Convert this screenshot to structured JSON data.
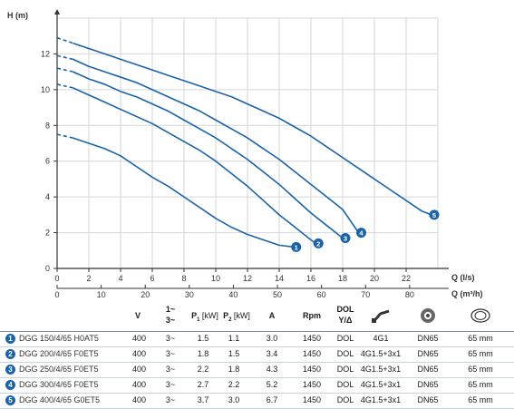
{
  "chart_data": {
    "type": "line",
    "ylabel": "H (m)",
    "xlabel": "Q (l/s)",
    "xlabel2": "Q (m³/h)",
    "xlim": [
      0,
      24
    ],
    "ylim": [
      0,
      14
    ],
    "x_ticks": [
      "0",
      "2",
      "4",
      "6",
      "8",
      "10",
      "12",
      "14",
      "16",
      "18",
      "20",
      "22"
    ],
    "x2_ticks": [
      "0",
      "10",
      "20",
      "30",
      "40",
      "50",
      "60",
      "70",
      "80"
    ],
    "y_ticks": [
      "0",
      "2",
      "4",
      "6",
      "8",
      "10",
      "12"
    ],
    "series": [
      {
        "badge": "1",
        "extrapolated": [
          [
            0,
            7.5
          ],
          [
            1,
            7.3
          ]
        ],
        "x": [
          1,
          2,
          3,
          4,
          5,
          6,
          7,
          8,
          9,
          10,
          11,
          12,
          13,
          14,
          14.9
        ],
        "y": [
          7.3,
          7.0,
          6.7,
          6.3,
          5.7,
          5.1,
          4.6,
          4.0,
          3.4,
          2.8,
          2.3,
          1.9,
          1.6,
          1.3,
          1.2
        ]
      },
      {
        "badge": "2",
        "extrapolated": [
          [
            0,
            10.3
          ],
          [
            1,
            10.1
          ]
        ],
        "x": [
          1,
          2,
          3,
          4,
          5,
          6,
          7,
          8,
          9,
          10,
          11,
          12,
          13,
          14,
          15,
          16,
          16.3
        ],
        "y": [
          10.1,
          9.7,
          9.3,
          8.9,
          8.5,
          8.1,
          7.6,
          7.1,
          6.6,
          6.0,
          5.3,
          4.6,
          3.8,
          3.0,
          2.3,
          1.6,
          1.4
        ]
      },
      {
        "badge": "3",
        "extrapolated": [
          [
            0,
            11.2
          ],
          [
            1,
            11.0
          ]
        ],
        "x": [
          1,
          2,
          3,
          4,
          5,
          6,
          7,
          8,
          9,
          10,
          11,
          12,
          13,
          14,
          15,
          16,
          17,
          18
        ],
        "y": [
          11.0,
          10.6,
          10.3,
          9.9,
          9.6,
          9.2,
          8.8,
          8.3,
          7.8,
          7.3,
          6.7,
          6.1,
          5.4,
          4.7,
          3.9,
          3.1,
          2.4,
          1.7
        ]
      },
      {
        "badge": "4",
        "extrapolated": [
          [
            0,
            11.9
          ],
          [
            1,
            11.7
          ]
        ],
        "x": [
          1,
          2,
          3,
          4,
          5,
          6,
          7,
          8,
          9,
          10,
          11,
          12,
          13,
          14,
          15,
          16,
          17,
          18,
          19
        ],
        "y": [
          11.7,
          11.3,
          11.0,
          10.7,
          10.4,
          10.0,
          9.6,
          9.2,
          8.8,
          8.3,
          7.8,
          7.3,
          6.7,
          6.1,
          5.4,
          4.7,
          4.0,
          3.3,
          2.0
        ]
      },
      {
        "badge": "5",
        "extrapolated": [
          [
            0,
            12.9
          ],
          [
            1,
            12.6
          ]
        ],
        "x": [
          1,
          2,
          3,
          4,
          5,
          6,
          7,
          8,
          9,
          10,
          11,
          12,
          13,
          14,
          15,
          16,
          17,
          18,
          19,
          20,
          21,
          22,
          23,
          23.6
        ],
        "y": [
          12.6,
          12.3,
          12.0,
          11.7,
          11.4,
          11.1,
          10.8,
          10.5,
          10.2,
          9.9,
          9.6,
          9.2,
          8.8,
          8.4,
          7.9,
          7.4,
          6.8,
          6.2,
          5.6,
          5.0,
          4.4,
          3.8,
          3.2,
          3.0
        ]
      }
    ]
  },
  "colors": {
    "curve": "#1b63a8",
    "axis": "#333333",
    "grid": "#d6d6d6"
  },
  "table": {
    "headers": {
      "v": "V",
      "phase_top": "1~",
      "phase_bottom": "3~",
      "p1": "P",
      "p1_sub": "1",
      "p1_unit": " [kW]",
      "p2": "P",
      "p2_sub": "2",
      "p2_unit": " [kW]",
      "a": "A",
      "rpm": "Rpm",
      "dol_top": "DOL",
      "dol_bottom": "Y/Δ",
      "icon1": "cable-icon",
      "icon2": "flange-icon",
      "icon3": "impeller-passage-icon"
    },
    "rows": [
      {
        "num": "1",
        "model": "DGG 150/4/65 H0AT5",
        "v": "400",
        "phase": "3~",
        "p1": "1.5",
        "p2": "1.1",
        "a": "3.0",
        "rpm": "1450",
        "dol": "DOL",
        "cable": "4G1",
        "dn": "DN65",
        "mm": "65 mm"
      },
      {
        "num": "2",
        "model": "DGG 200/4/65 F0ET5",
        "v": "400",
        "phase": "3~",
        "p1": "1.8",
        "p2": "1.5",
        "a": "3.4",
        "rpm": "1450",
        "dol": "DOL",
        "cable": "4G1.5+3x1",
        "dn": "DN65",
        "mm": "65 mm"
      },
      {
        "num": "3",
        "model": "DGG 250/4/65 F0ET5",
        "v": "400",
        "phase": "3~",
        "p1": "2.2",
        "p2": "1.8",
        "a": "4.3",
        "rpm": "1450",
        "dol": "DOL",
        "cable": "4G1.5+3x1",
        "dn": "DN65",
        "mm": "65 mm"
      },
      {
        "num": "4",
        "model": "DGG 300/4/65 F0ET5",
        "v": "400",
        "phase": "3~",
        "p1": "2.7",
        "p2": "2.2",
        "a": "5.2",
        "rpm": "1450",
        "dol": "DOL",
        "cable": "4G1.5+3x1",
        "dn": "DN65",
        "mm": "65 mm"
      },
      {
        "num": "5",
        "model": "DGG 400/4/65 G0ET5",
        "v": "400",
        "phase": "3~",
        "p1": "3.7",
        "p2": "3.0",
        "a": "6.7",
        "rpm": "1450",
        "dol": "DOL",
        "cable": "4G1.5+3x1",
        "dn": "DN65",
        "mm": "65 mm"
      }
    ]
  }
}
